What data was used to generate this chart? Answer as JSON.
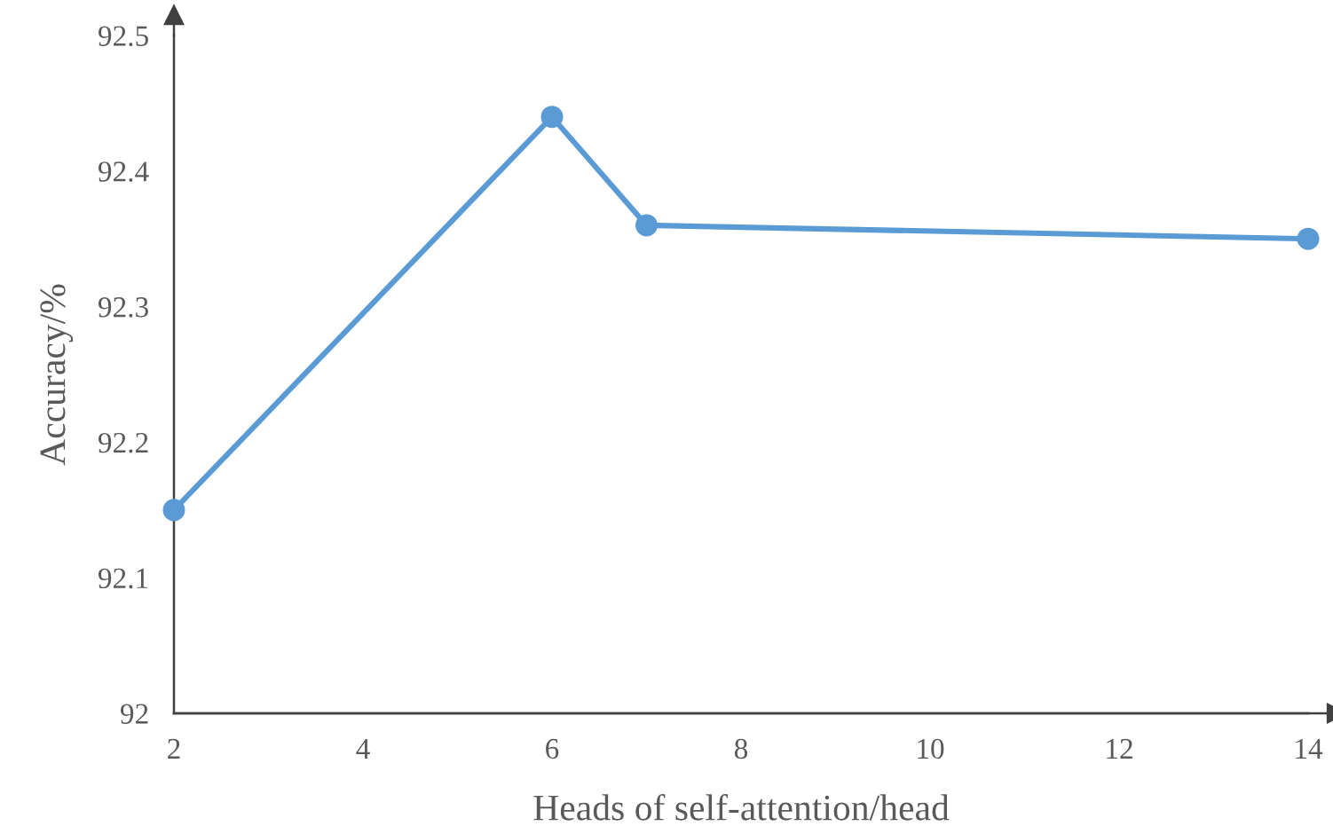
{
  "chart_data": {
    "type": "line",
    "xlabel": "Heads of self-attention/head",
    "ylabel": "Accuracy/%",
    "x": [
      2,
      6,
      7,
      14
    ],
    "series": [
      {
        "color": "#5b9bd5",
        "values": [
          92.15,
          92.44,
          92.36,
          92.35
        ]
      }
    ],
    "xlim": [
      2,
      14
    ],
    "xticks": [
      2,
      4,
      6,
      8,
      10,
      12,
      14
    ],
    "ylim": [
      92,
      92.5
    ],
    "yticks": [
      92,
      92.1,
      92.2,
      92.3,
      92.4,
      92.5
    ],
    "grid": false,
    "legend": false,
    "marker": "circle",
    "line_style": "solid"
  }
}
